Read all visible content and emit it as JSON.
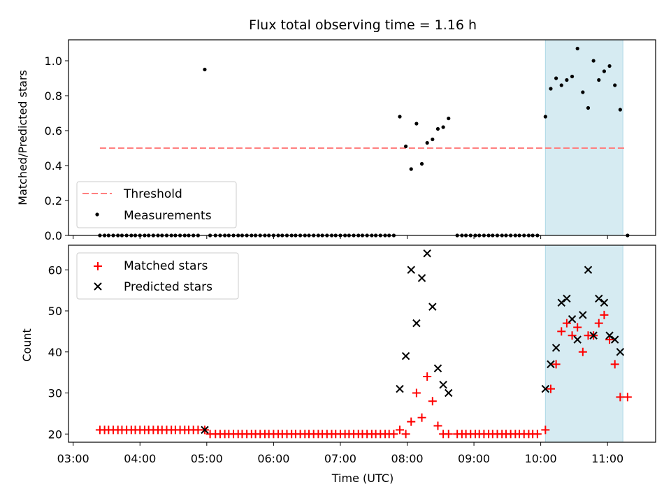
{
  "title": "Flux total observing time = 1.16 h",
  "xlabel": "Time (UTC)",
  "xticks": [
    "03:00",
    "04:00",
    "05:00",
    "06:00",
    "07:00",
    "08:00",
    "09:00",
    "10:00",
    "11:00"
  ],
  "colors": {
    "threshold": "#ff7f7f",
    "measurement": "#000000",
    "matched": "#ff0000",
    "predicted": "#000000",
    "span_fill": "#add8e6"
  },
  "chart_data": [
    {
      "type": "scatter",
      "ylabel": "Matched/Predicted stars",
      "ylim": [
        0,
        1.12
      ],
      "yticks": [
        "0.0",
        "0.2",
        "0.4",
        "0.6",
        "0.8",
        "1.0"
      ],
      "ytick_values": [
        0,
        0.2,
        0.4,
        0.6,
        0.8,
        1.0
      ],
      "x_unit": "hours UTC",
      "xlim": [
        2.93,
        11.72
      ],
      "highlight_span": [
        10.07,
        11.23
      ],
      "legend_position": "lower-left",
      "threshold": {
        "name": "Threshold",
        "y": 0.5,
        "x_range": [
          3.4,
          11.27
        ],
        "style": "dashed"
      },
      "series": [
        {
          "name": "Measurements",
          "marker": "dot",
          "points": [
            [
              3.4,
              0
            ],
            [
              3.47,
              0
            ],
            [
              3.53,
              0
            ],
            [
              3.6,
              0
            ],
            [
              3.67,
              0
            ],
            [
              3.73,
              0
            ],
            [
              3.8,
              0
            ],
            [
              3.87,
              0
            ],
            [
              3.93,
              0
            ],
            [
              4.0,
              0
            ],
            [
              4.07,
              0
            ],
            [
              4.13,
              0
            ],
            [
              4.2,
              0
            ],
            [
              4.27,
              0
            ],
            [
              4.33,
              0
            ],
            [
              4.4,
              0
            ],
            [
              4.47,
              0
            ],
            [
              4.53,
              0
            ],
            [
              4.6,
              0
            ],
            [
              4.67,
              0
            ],
            [
              4.73,
              0
            ],
            [
              4.8,
              0
            ],
            [
              4.87,
              0
            ],
            [
              4.97,
              0.95
            ],
            [
              5.05,
              0
            ],
            [
              5.13,
              0
            ],
            [
              5.2,
              0
            ],
            [
              5.27,
              0
            ],
            [
              5.33,
              0
            ],
            [
              5.4,
              0
            ],
            [
              5.47,
              0
            ],
            [
              5.53,
              0
            ],
            [
              5.6,
              0
            ],
            [
              5.67,
              0
            ],
            [
              5.73,
              0
            ],
            [
              5.8,
              0
            ],
            [
              5.87,
              0
            ],
            [
              5.93,
              0
            ],
            [
              6.0,
              0
            ],
            [
              6.07,
              0
            ],
            [
              6.13,
              0
            ],
            [
              6.2,
              0
            ],
            [
              6.27,
              0
            ],
            [
              6.33,
              0
            ],
            [
              6.4,
              0
            ],
            [
              6.47,
              0
            ],
            [
              6.53,
              0
            ],
            [
              6.6,
              0
            ],
            [
              6.67,
              0
            ],
            [
              6.73,
              0
            ],
            [
              6.8,
              0
            ],
            [
              6.87,
              0
            ],
            [
              6.93,
              0
            ],
            [
              7.0,
              0
            ],
            [
              7.07,
              0
            ],
            [
              7.13,
              0
            ],
            [
              7.2,
              0
            ],
            [
              7.27,
              0
            ],
            [
              7.33,
              0
            ],
            [
              7.4,
              0
            ],
            [
              7.47,
              0
            ],
            [
              7.53,
              0
            ],
            [
              7.6,
              0
            ],
            [
              7.67,
              0
            ],
            [
              7.73,
              0
            ],
            [
              7.8,
              0
            ],
            [
              7.89,
              0.68
            ],
            [
              7.98,
              0.51
            ],
            [
              8.06,
              0.38
            ],
            [
              8.14,
              0.64
            ],
            [
              8.22,
              0.41
            ],
            [
              8.3,
              0.53
            ],
            [
              8.38,
              0.55
            ],
            [
              8.46,
              0.61
            ],
            [
              8.54,
              0.62
            ],
            [
              8.62,
              0.67
            ],
            [
              8.75,
              0
            ],
            [
              8.82,
              0
            ],
            [
              8.88,
              0
            ],
            [
              8.95,
              0
            ],
            [
              9.02,
              0
            ],
            [
              9.08,
              0
            ],
            [
              9.15,
              0
            ],
            [
              9.22,
              0
            ],
            [
              9.28,
              0
            ],
            [
              9.35,
              0
            ],
            [
              9.42,
              0
            ],
            [
              9.48,
              0
            ],
            [
              9.55,
              0
            ],
            [
              9.62,
              0
            ],
            [
              9.68,
              0
            ],
            [
              9.75,
              0
            ],
            [
              9.82,
              0
            ],
            [
              9.88,
              0
            ],
            [
              9.95,
              0
            ],
            [
              10.07,
              0.68
            ],
            [
              10.15,
              0.84
            ],
            [
              10.23,
              0.9
            ],
            [
              10.31,
              0.86
            ],
            [
              10.39,
              0.89
            ],
            [
              10.47,
              0.91
            ],
            [
              10.55,
              1.07
            ],
            [
              10.63,
              0.82
            ],
            [
              10.71,
              0.73
            ],
            [
              10.79,
              1.0
            ],
            [
              10.87,
              0.89
            ],
            [
              10.95,
              0.94
            ],
            [
              11.03,
              0.97
            ],
            [
              11.11,
              0.86
            ],
            [
              11.19,
              0.72
            ],
            [
              11.3,
              0
            ]
          ]
        }
      ]
    },
    {
      "type": "scatter",
      "ylabel": "Count",
      "ylim": [
        18,
        66
      ],
      "yticks": [
        "20",
        "30",
        "40",
        "50",
        "60"
      ],
      "ytick_values": [
        20,
        30,
        40,
        50,
        60
      ],
      "x_unit": "hours UTC",
      "xlim": [
        2.93,
        11.72
      ],
      "highlight_span": [
        10.07,
        11.23
      ],
      "legend_position": "upper-left",
      "series": [
        {
          "name": "Matched stars",
          "marker": "plus",
          "points": [
            [
              3.4,
              21
            ],
            [
              3.47,
              21
            ],
            [
              3.53,
              21
            ],
            [
              3.6,
              21
            ],
            [
              3.67,
              21
            ],
            [
              3.73,
              21
            ],
            [
              3.8,
              21
            ],
            [
              3.87,
              21
            ],
            [
              3.93,
              21
            ],
            [
              4.0,
              21
            ],
            [
              4.07,
              21
            ],
            [
              4.13,
              21
            ],
            [
              4.2,
              21
            ],
            [
              4.27,
              21
            ],
            [
              4.33,
              21
            ],
            [
              4.4,
              21
            ],
            [
              4.47,
              21
            ],
            [
              4.53,
              21
            ],
            [
              4.6,
              21
            ],
            [
              4.67,
              21
            ],
            [
              4.73,
              21
            ],
            [
              4.8,
              21
            ],
            [
              4.87,
              21
            ],
            [
              4.97,
              21
            ],
            [
              5.05,
              20
            ],
            [
              5.13,
              20
            ],
            [
              5.2,
              20
            ],
            [
              5.27,
              20
            ],
            [
              5.33,
              20
            ],
            [
              5.4,
              20
            ],
            [
              5.47,
              20
            ],
            [
              5.53,
              20
            ],
            [
              5.6,
              20
            ],
            [
              5.67,
              20
            ],
            [
              5.73,
              20
            ],
            [
              5.8,
              20
            ],
            [
              5.87,
              20
            ],
            [
              5.93,
              20
            ],
            [
              6.0,
              20
            ],
            [
              6.07,
              20
            ],
            [
              6.13,
              20
            ],
            [
              6.2,
              20
            ],
            [
              6.27,
              20
            ],
            [
              6.33,
              20
            ],
            [
              6.4,
              20
            ],
            [
              6.47,
              20
            ],
            [
              6.53,
              20
            ],
            [
              6.6,
              20
            ],
            [
              6.67,
              20
            ],
            [
              6.73,
              20
            ],
            [
              6.8,
              20
            ],
            [
              6.87,
              20
            ],
            [
              6.93,
              20
            ],
            [
              7.0,
              20
            ],
            [
              7.07,
              20
            ],
            [
              7.13,
              20
            ],
            [
              7.2,
              20
            ],
            [
              7.27,
              20
            ],
            [
              7.33,
              20
            ],
            [
              7.4,
              20
            ],
            [
              7.47,
              20
            ],
            [
              7.53,
              20
            ],
            [
              7.6,
              20
            ],
            [
              7.67,
              20
            ],
            [
              7.73,
              20
            ],
            [
              7.8,
              20
            ],
            [
              7.89,
              21
            ],
            [
              7.98,
              20
            ],
            [
              8.06,
              23
            ],
            [
              8.14,
              30
            ],
            [
              8.22,
              24
            ],
            [
              8.3,
              34
            ],
            [
              8.38,
              28
            ],
            [
              8.46,
              22
            ],
            [
              8.54,
              20
            ],
            [
              8.62,
              20
            ],
            [
              8.75,
              20
            ],
            [
              8.82,
              20
            ],
            [
              8.88,
              20
            ],
            [
              8.95,
              20
            ],
            [
              9.02,
              20
            ],
            [
              9.08,
              20
            ],
            [
              9.15,
              20
            ],
            [
              9.22,
              20
            ],
            [
              9.28,
              20
            ],
            [
              9.35,
              20
            ],
            [
              9.42,
              20
            ],
            [
              9.48,
              20
            ],
            [
              9.55,
              20
            ],
            [
              9.62,
              20
            ],
            [
              9.68,
              20
            ],
            [
              9.75,
              20
            ],
            [
              9.82,
              20
            ],
            [
              9.88,
              20
            ],
            [
              9.95,
              20
            ],
            [
              10.07,
              21
            ],
            [
              10.15,
              31
            ],
            [
              10.23,
              37
            ],
            [
              10.31,
              45
            ],
            [
              10.39,
              47
            ],
            [
              10.47,
              44
            ],
            [
              10.55,
              46
            ],
            [
              10.63,
              40
            ],
            [
              10.71,
              44
            ],
            [
              10.79,
              44
            ],
            [
              10.87,
              47
            ],
            [
              10.95,
              49
            ],
            [
              11.03,
              43
            ],
            [
              11.11,
              37
            ],
            [
              11.19,
              29
            ],
            [
              11.3,
              29
            ]
          ]
        },
        {
          "name": "Predicted stars",
          "marker": "x",
          "points": [
            [
              4.97,
              21
            ],
            [
              7.89,
              31
            ],
            [
              7.98,
              39
            ],
            [
              8.06,
              60
            ],
            [
              8.14,
              47
            ],
            [
              8.22,
              58
            ],
            [
              8.3,
              64
            ],
            [
              8.38,
              51
            ],
            [
              8.46,
              36
            ],
            [
              8.54,
              32
            ],
            [
              8.62,
              30
            ],
            [
              10.07,
              31
            ],
            [
              10.15,
              37
            ],
            [
              10.23,
              41
            ],
            [
              10.31,
              52
            ],
            [
              10.39,
              53
            ],
            [
              10.47,
              48
            ],
            [
              10.55,
              43
            ],
            [
              10.63,
              49
            ],
            [
              10.71,
              60
            ],
            [
              10.79,
              44
            ],
            [
              10.87,
              53
            ],
            [
              10.95,
              52
            ],
            [
              11.03,
              44
            ],
            [
              11.11,
              43
            ],
            [
              11.19,
              40
            ]
          ]
        }
      ]
    }
  ]
}
